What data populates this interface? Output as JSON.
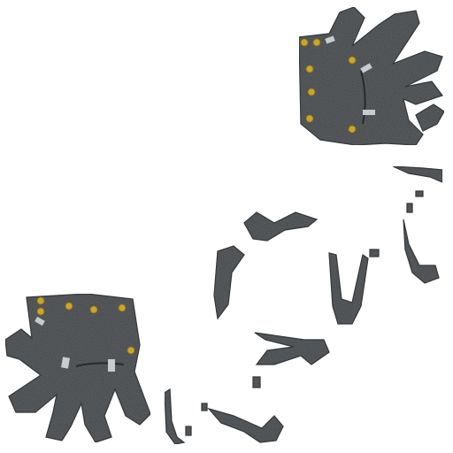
{
  "texture": {
    "background_color": "#ffffff",
    "metal_color": "#5f6366",
    "metal_dark": "#3e4245",
    "metal_light": "#8a8e91",
    "rivet_color": "#c9a62a",
    "strap_color": "#c9cbcd",
    "seam_color": "#2f3336"
  },
  "pieces": {
    "upper_glove": "gauntlet-hand-upper",
    "lower_glove": "gauntlet-hand-lower",
    "finger_plates": "finger-plate-fragments"
  }
}
